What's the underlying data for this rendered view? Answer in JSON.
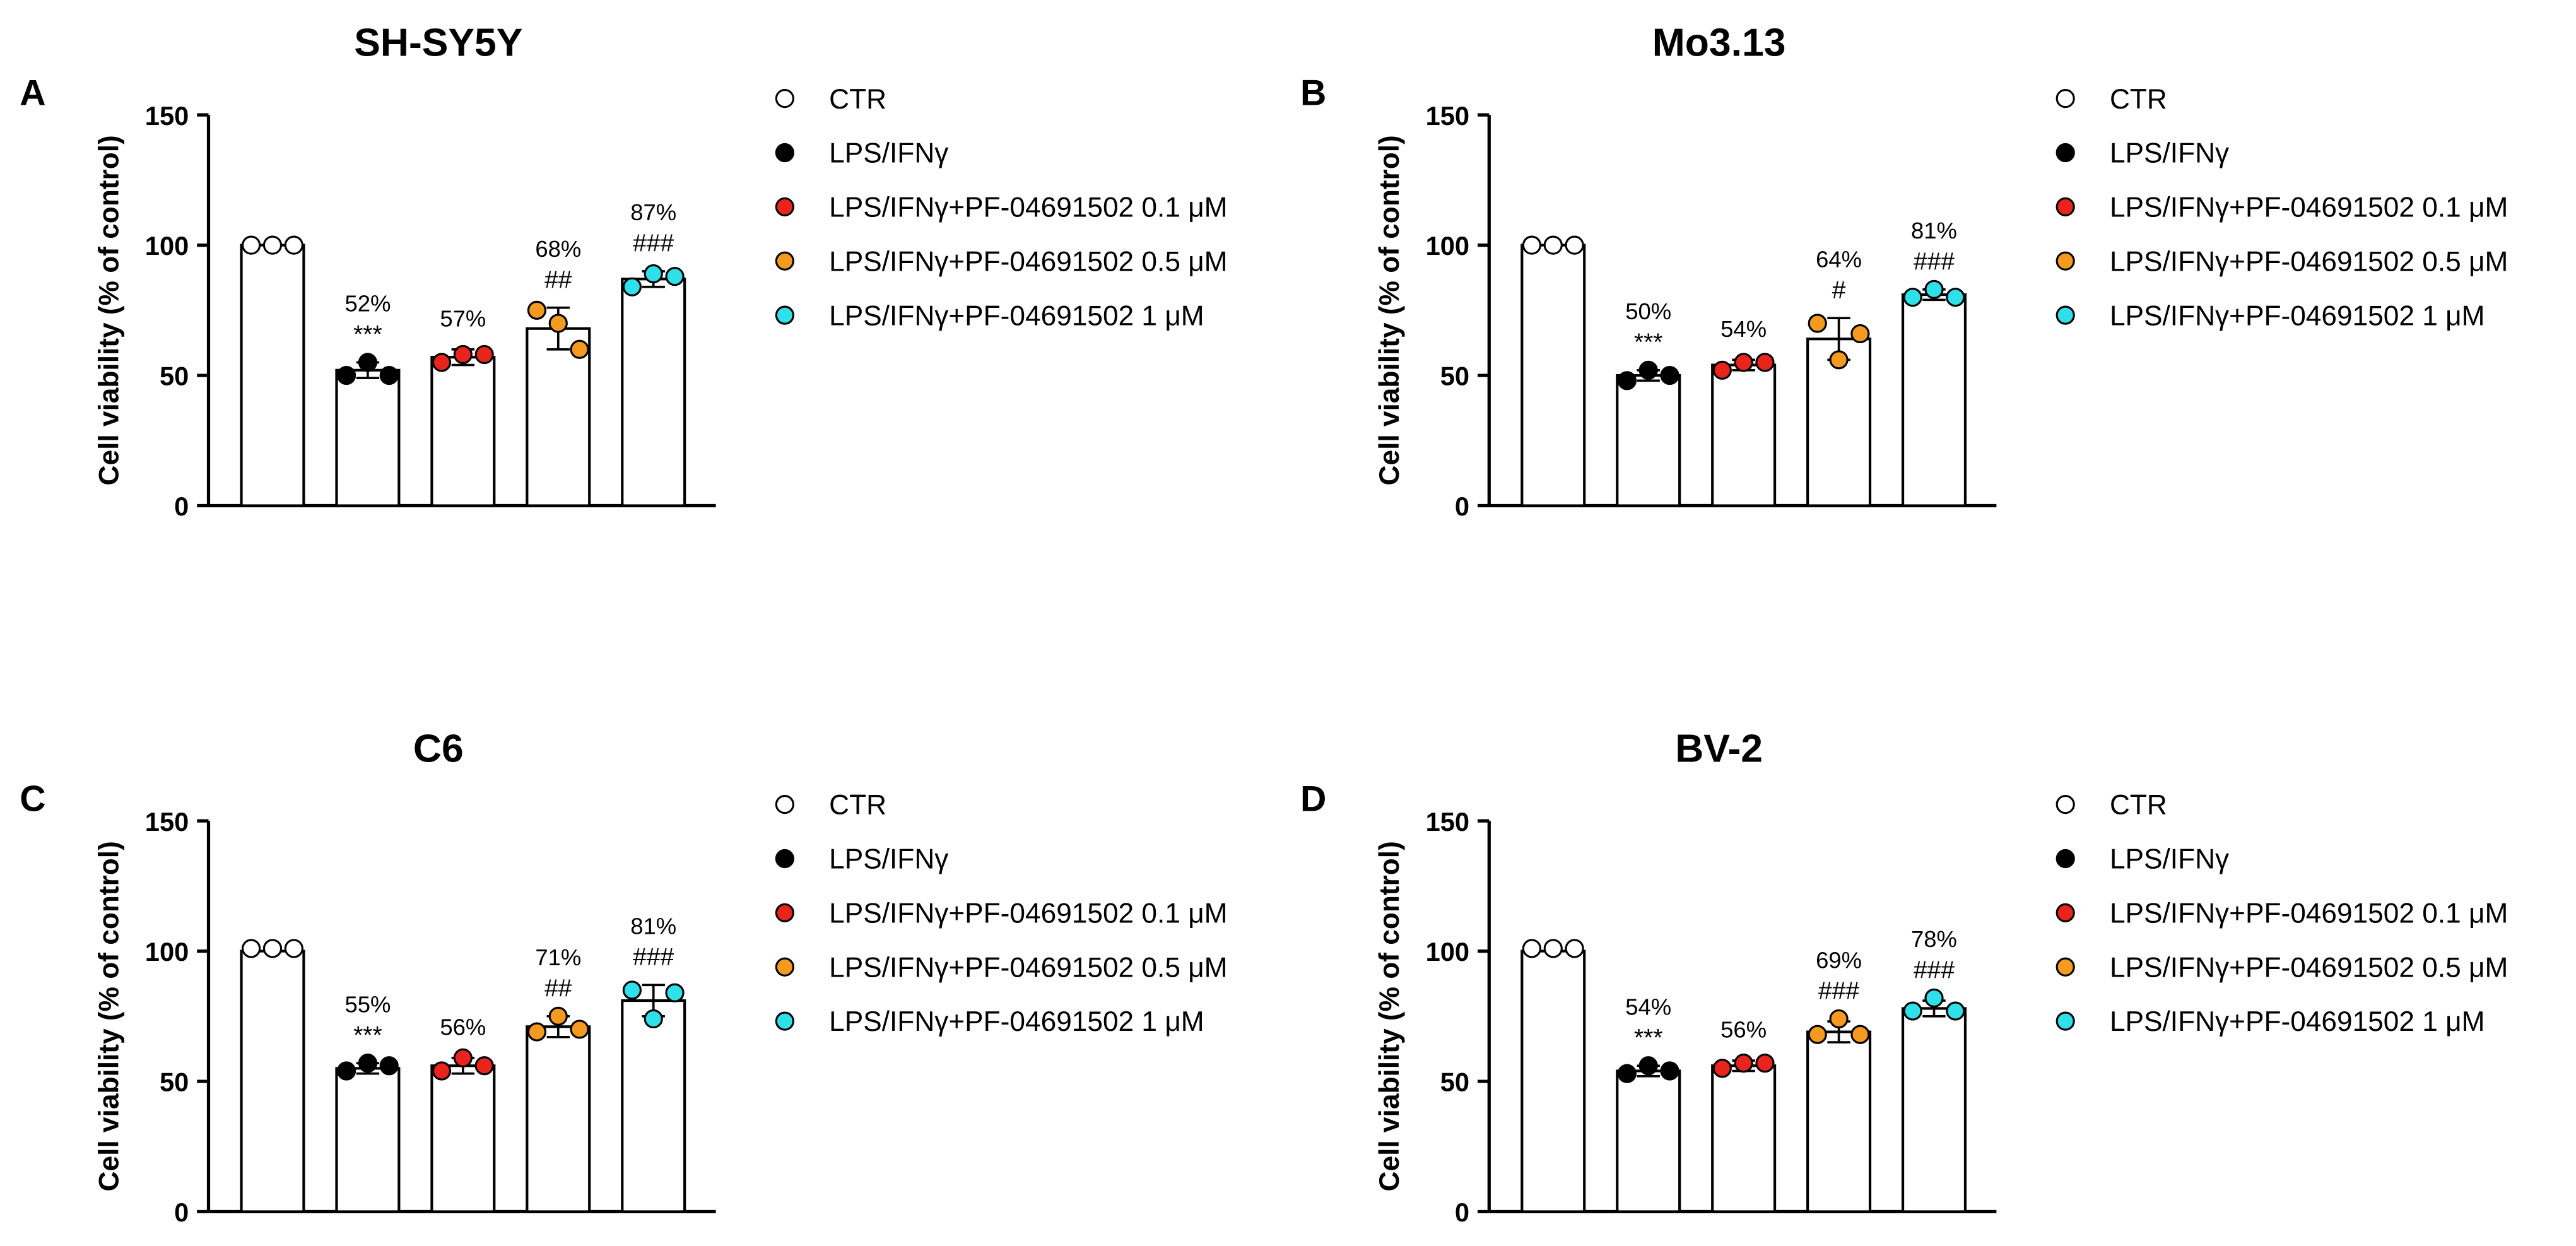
{
  "legend": {
    "placement": "right",
    "items": [
      {
        "label": "CTR",
        "color": "#ffffff"
      },
      {
        "label": "LPS/IFNγ",
        "color": "#000000"
      },
      {
        "label": "LPS/IFNγ+PF-04691502 0.1 μM",
        "color": "#e8241c"
      },
      {
        "label": "LPS/IFNγ+PF-04691502 0.5 μM",
        "color": "#f39a1f"
      },
      {
        "label": "LPS/IFNγ+PF-04691502 1 μM",
        "color": "#2ee0ea"
      }
    ]
  },
  "chart_data": [
    {
      "type": "bar",
      "panel": "A",
      "title": "SH-SY5Y",
      "ylabel": "Cell viability (% of control)",
      "ylim": [
        0,
        150
      ],
      "yticks": [
        "0",
        "50",
        "100",
        "150"
      ],
      "grid": false,
      "categories": [
        "CTR",
        "LPS/IFNγ",
        "LPS/IFNγ+PF-04691502 0.1 μM",
        "LPS/IFNγ+PF-04691502 0.5 μM",
        "LPS/IFNγ+PF-04691502 1 μM"
      ],
      "values": [
        100,
        52,
        57,
        68,
        87
      ],
      "errors": [
        0,
        3,
        3,
        8,
        3
      ],
      "points": [
        [
          100,
          100,
          100
        ],
        [
          50,
          55,
          50
        ],
        [
          55,
          58,
          58
        ],
        [
          75,
          70,
          60
        ],
        [
          84,
          89,
          88
        ]
      ],
      "pct_labels": [
        "",
        "52%",
        "57%",
        "68%",
        "87%"
      ],
      "sig_labels": [
        "",
        "***",
        "",
        "##",
        "###"
      ]
    },
    {
      "type": "bar",
      "panel": "B",
      "title": "Mo3.13",
      "ylabel": "Cell viability (% of control)",
      "ylim": [
        0,
        150
      ],
      "yticks": [
        "0",
        "50",
        "100",
        "150"
      ],
      "grid": false,
      "categories": [
        "CTR",
        "LPS/IFNγ",
        "LPS/IFNγ+PF-04691502 0.1 μM",
        "LPS/IFNγ+PF-04691502 0.5 μM",
        "LPS/IFNγ+PF-04691502 1 μM"
      ],
      "values": [
        100,
        50,
        54,
        64,
        81
      ],
      "errors": [
        0,
        2,
        2,
        8,
        2
      ],
      "points": [
        [
          100,
          100,
          100
        ],
        [
          48,
          52,
          50
        ],
        [
          52,
          55,
          55
        ],
        [
          70,
          56,
          66
        ],
        [
          80,
          83,
          80
        ]
      ],
      "pct_labels": [
        "",
        "50%",
        "54%",
        "64%",
        "81%"
      ],
      "sig_labels": [
        "",
        "***",
        "",
        "#",
        "###"
      ]
    },
    {
      "type": "bar",
      "panel": "C",
      "title": "C6",
      "ylabel": "Cell viability (% of control)",
      "ylim": [
        0,
        150
      ],
      "yticks": [
        "0",
        "50",
        "100",
        "150"
      ],
      "grid": false,
      "categories": [
        "CTR",
        "LPS/IFNγ",
        "LPS/IFNγ+PF-04691502 0.1 μM",
        "LPS/IFNγ+PF-04691502 0.5 μM",
        "LPS/IFNγ+PF-04691502 1 μM"
      ],
      "values": [
        100,
        55,
        56,
        71,
        81
      ],
      "errors": [
        0,
        2,
        3,
        4,
        6
      ],
      "points": [
        [
          101,
          101,
          101
        ],
        [
          54,
          57,
          56
        ],
        [
          54,
          59,
          56
        ],
        [
          69,
          75,
          70
        ],
        [
          85,
          74,
          84
        ]
      ],
      "pct_labels": [
        "",
        "55%",
        "56%",
        "71%",
        "81%"
      ],
      "sig_labels": [
        "",
        "***",
        "",
        "##",
        "###"
      ]
    },
    {
      "type": "bar",
      "panel": "D",
      "title": "BV-2",
      "ylabel": "Cell viability (% of control)",
      "ylim": [
        0,
        150
      ],
      "yticks": [
        "0",
        "50",
        "100",
        "150"
      ],
      "grid": false,
      "categories": [
        "CTR",
        "LPS/IFNγ",
        "LPS/IFNγ+PF-04691502 0.1 μM",
        "LPS/IFNγ+PF-04691502 0.5 μM",
        "LPS/IFNγ+PF-04691502 1 μM"
      ],
      "values": [
        100,
        54,
        56,
        69,
        78
      ],
      "errors": [
        0,
        2,
        2,
        4,
        3
      ],
      "points": [
        [
          101,
          101,
          101
        ],
        [
          53,
          56,
          54
        ],
        [
          55,
          57,
          57
        ],
        [
          68,
          74,
          68
        ],
        [
          77,
          82,
          77
        ]
      ],
      "pct_labels": [
        "",
        "54%",
        "56%",
        "69%",
        "78%"
      ],
      "sig_labels": [
        "",
        "***",
        "",
        "###",
        "###"
      ]
    }
  ]
}
